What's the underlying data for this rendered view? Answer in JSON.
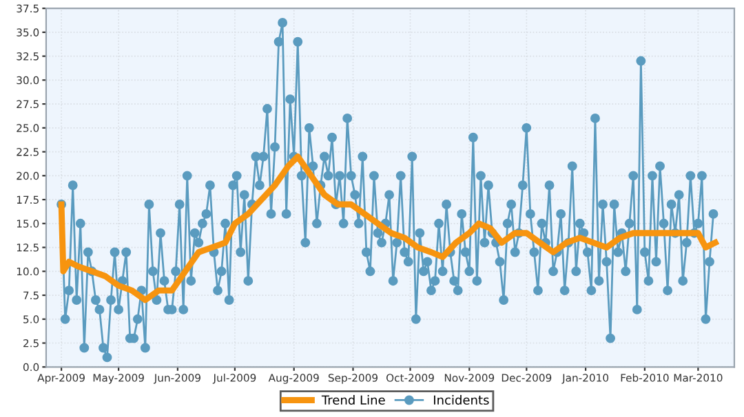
{
  "chart_data": {
    "type": "line",
    "xlim": [
      "2009-03-24",
      "2010-03-20"
    ],
    "xticks": [
      {
        "value": "2009-04-01",
        "label": "Apr-2009"
      },
      {
        "value": "2009-05-01",
        "label": "May-2009"
      },
      {
        "value": "2009-06-01",
        "label": "Jun-2009"
      },
      {
        "value": "2009-07-01",
        "label": "Jul-2009"
      },
      {
        "value": "2009-08-01",
        "label": "Aug-2009"
      },
      {
        "value": "2009-09-01",
        "label": "Sep-2009"
      },
      {
        "value": "2009-10-01",
        "label": "Oct-2009"
      },
      {
        "value": "2009-11-01",
        "label": "Nov-2009"
      },
      {
        "value": "2009-12-01",
        "label": "Dec-2009"
      },
      {
        "value": "2010-01-01",
        "label": "Jan-2010"
      },
      {
        "value": "2010-02-01",
        "label": "Feb-2010"
      },
      {
        "value": "2010-03-01",
        "label": "Mar-2010"
      }
    ],
    "ylim": [
      0,
      37.5
    ],
    "yticks": [
      {
        "value": 0,
        "label": "0.0"
      },
      {
        "value": 2.5,
        "label": "2.5"
      },
      {
        "value": 5,
        "label": "5.0"
      },
      {
        "value": 7.5,
        "label": "7.5"
      },
      {
        "value": 10,
        "label": "10.0"
      },
      {
        "value": 12.5,
        "label": "12.5"
      },
      {
        "value": 15,
        "label": "15.0"
      },
      {
        "value": 17.5,
        "label": "17.5"
      },
      {
        "value": 20,
        "label": "20.0"
      },
      {
        "value": 22.5,
        "label": "22.5"
      },
      {
        "value": 25,
        "label": "25.0"
      },
      {
        "value": 27.5,
        "label": "27.5"
      },
      {
        "value": 30,
        "label": "30.0"
      },
      {
        "value": 32.5,
        "label": "32.5"
      },
      {
        "value": 35,
        "label": "35.0"
      },
      {
        "value": 37.5,
        "label": "37.5"
      }
    ],
    "grid": true,
    "legend": "bottom",
    "series": [
      {
        "name": "Trend Line",
        "color": "#f7940f",
        "marker": "none",
        "x": [
          "2009-04-01",
          "2009-04-02",
          "2009-04-05",
          "2009-04-10",
          "2009-04-17",
          "2009-04-24",
          "2009-05-01",
          "2009-05-08",
          "2009-05-15",
          "2009-05-22",
          "2009-05-29",
          "2009-06-05",
          "2009-06-12",
          "2009-06-19",
          "2009-06-26",
          "2009-07-01",
          "2009-07-08",
          "2009-07-15",
          "2009-07-22",
          "2009-07-29",
          "2009-08-03",
          "2009-08-10",
          "2009-08-17",
          "2009-08-24",
          "2009-08-31",
          "2009-09-07",
          "2009-09-14",
          "2009-09-21",
          "2009-09-28",
          "2009-10-05",
          "2009-10-12",
          "2009-10-18",
          "2009-10-25",
          "2009-11-01",
          "2009-11-06",
          "2009-11-12",
          "2009-11-18",
          "2009-11-25",
          "2009-12-01",
          "2009-12-08",
          "2009-12-15",
          "2009-12-22",
          "2009-12-29",
          "2010-01-05",
          "2010-01-12",
          "2010-01-19",
          "2010-01-26",
          "2010-02-02",
          "2010-02-09",
          "2010-02-16",
          "2010-02-23",
          "2010-03-01",
          "2010-03-05",
          "2010-03-10"
        ],
        "values": [
          17,
          10,
          11,
          10.5,
          10,
          9.5,
          8.5,
          8,
          7,
          8,
          8,
          10,
          12,
          12.5,
          13,
          15,
          16,
          17.5,
          19,
          21,
          22,
          20,
          18,
          17,
          17,
          16,
          15,
          14,
          13.5,
          12.5,
          12,
          11.5,
          13,
          14,
          15,
          14.5,
          13,
          14,
          14,
          13,
          12,
          13,
          13.5,
          13,
          12.5,
          13.5,
          14,
          14,
          14,
          14,
          14,
          14,
          12.5,
          13
        ]
      },
      {
        "name": "Incidents",
        "color": "#5a9bbf",
        "marker": "circle",
        "x": [
          "2009-04-01",
          "2009-04-03",
          "2009-04-05",
          "2009-04-07",
          "2009-04-09",
          "2009-04-11",
          "2009-04-13",
          "2009-04-15",
          "2009-04-17",
          "2009-04-19",
          "2009-04-21",
          "2009-04-23",
          "2009-04-25",
          "2009-04-27",
          "2009-04-29",
          "2009-05-01",
          "2009-05-03",
          "2009-05-05",
          "2009-05-07",
          "2009-05-09",
          "2009-05-11",
          "2009-05-13",
          "2009-05-15",
          "2009-05-17",
          "2009-05-19",
          "2009-05-21",
          "2009-05-23",
          "2009-05-25",
          "2009-05-27",
          "2009-05-29",
          "2009-05-31",
          "2009-06-02",
          "2009-06-04",
          "2009-06-06",
          "2009-06-08",
          "2009-06-10",
          "2009-06-12",
          "2009-06-14",
          "2009-06-16",
          "2009-06-18",
          "2009-06-20",
          "2009-06-22",
          "2009-06-24",
          "2009-06-26",
          "2009-06-28",
          "2009-06-30",
          "2009-07-02",
          "2009-07-04",
          "2009-07-06",
          "2009-07-08",
          "2009-07-10",
          "2009-07-12",
          "2009-07-14",
          "2009-07-16",
          "2009-07-18",
          "2009-07-20",
          "2009-07-22",
          "2009-07-24",
          "2009-07-26",
          "2009-07-28",
          "2009-07-30",
          "2009-08-01",
          "2009-08-03",
          "2009-08-05",
          "2009-08-07",
          "2009-08-09",
          "2009-08-11",
          "2009-08-13",
          "2009-08-15",
          "2009-08-17",
          "2009-08-19",
          "2009-08-21",
          "2009-08-23",
          "2009-08-25",
          "2009-08-27",
          "2009-08-29",
          "2009-08-31",
          "2009-09-02",
          "2009-09-04",
          "2009-09-06",
          "2009-09-08",
          "2009-09-10",
          "2009-09-12",
          "2009-09-14",
          "2009-09-16",
          "2009-09-18",
          "2009-09-20",
          "2009-09-22",
          "2009-09-24",
          "2009-09-26",
          "2009-09-28",
          "2009-09-30",
          "2009-10-02",
          "2009-10-04",
          "2009-10-06",
          "2009-10-08",
          "2009-10-10",
          "2009-10-12",
          "2009-10-14",
          "2009-10-16",
          "2009-10-18",
          "2009-10-20",
          "2009-10-22",
          "2009-10-24",
          "2009-10-26",
          "2009-10-28",
          "2009-10-30",
          "2009-11-01",
          "2009-11-03",
          "2009-11-05",
          "2009-11-07",
          "2009-11-09",
          "2009-11-11",
          "2009-11-13",
          "2009-11-15",
          "2009-11-17",
          "2009-11-19",
          "2009-11-21",
          "2009-11-23",
          "2009-11-25",
          "2009-11-27",
          "2009-11-29",
          "2009-12-01",
          "2009-12-03",
          "2009-12-05",
          "2009-12-07",
          "2009-12-09",
          "2009-12-11",
          "2009-12-13",
          "2009-12-15",
          "2009-12-17",
          "2009-12-19",
          "2009-12-21",
          "2009-12-23",
          "2009-12-25",
          "2009-12-27",
          "2009-12-29",
          "2009-12-31",
          "2010-01-02",
          "2010-01-04",
          "2010-01-06",
          "2010-01-08",
          "2010-01-10",
          "2010-01-12",
          "2010-01-14",
          "2010-01-16",
          "2010-01-18",
          "2010-01-20",
          "2010-01-22",
          "2010-01-24",
          "2010-01-26",
          "2010-01-28",
          "2010-01-30",
          "2010-02-01",
          "2010-02-03",
          "2010-02-05",
          "2010-02-07",
          "2010-02-09",
          "2010-02-11",
          "2010-02-13",
          "2010-02-15",
          "2010-02-17",
          "2010-02-19",
          "2010-02-21",
          "2010-02-23",
          "2010-02-25",
          "2010-02-27",
          "2010-03-01",
          "2010-03-03",
          "2010-03-05",
          "2010-03-07",
          "2010-03-09"
        ],
        "values": [
          17,
          5,
          8,
          19,
          7,
          15,
          2,
          12,
          10,
          7,
          6,
          2,
          1,
          7,
          12,
          6,
          9,
          12,
          3,
          3,
          5,
          8,
          2,
          17,
          10,
          7,
          14,
          9,
          6,
          6,
          10,
          17,
          6,
          20,
          9,
          14,
          13,
          15,
          16,
          19,
          12,
          8,
          10,
          15,
          7,
          19,
          20,
          12,
          18,
          9,
          17,
          22,
          19,
          22,
          27,
          16,
          23,
          34,
          36,
          16,
          28,
          22,
          34,
          20,
          13,
          25,
          21,
          15,
          19,
          22,
          20,
          24,
          17,
          20,
          15,
          26,
          20,
          18,
          15,
          22,
          12,
          10,
          20,
          14,
          13,
          15,
          18,
          9,
          13,
          20,
          12,
          11,
          22,
          5,
          14,
          10,
          11,
          8,
          9,
          15,
          10,
          17,
          12,
          9,
          8,
          16,
          12,
          10,
          24,
          9,
          20,
          13,
          19,
          14,
          13,
          11,
          7,
          15,
          17,
          12,
          14,
          19,
          25,
          16,
          12,
          8,
          15,
          13,
          19,
          10,
          12,
          16,
          8,
          13,
          21,
          10,
          15,
          14,
          12,
          8,
          26,
          9,
          17,
          11,
          3,
          17,
          12,
          14,
          10,
          15,
          20,
          6,
          32,
          12,
          9,
          20,
          11,
          21,
          15,
          8,
          17,
          14,
          18,
          9,
          13,
          20,
          14,
          15,
          20,
          5,
          11,
          16
        ]
      }
    ]
  }
}
